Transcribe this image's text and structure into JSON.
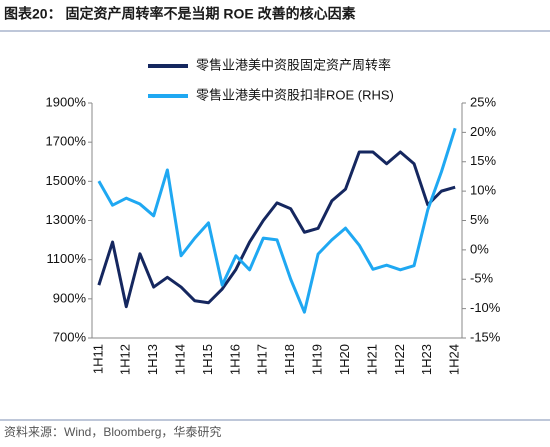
{
  "chart_data": {
    "type": "line",
    "title": "图表20：  固定资产周转率不是当期 ROE 改善的核心因素",
    "source": "资料来源：Wind，Bloomberg，华泰研究",
    "categories": [
      "1H11",
      null,
      "1H12",
      null,
      "1H13",
      null,
      "1H14",
      null,
      "1H15",
      null,
      "1H16",
      null,
      "1H17",
      null,
      "1H18",
      null,
      "1H19",
      null,
      "1H20",
      null,
      "1H21",
      null,
      "1H22",
      null,
      "1H23",
      null,
      "1H24"
    ],
    "series": [
      {
        "name": "零售业港美中资股固定资产周转率",
        "color": "#15275f",
        "values": [
          970,
          1190,
          860,
          1130,
          960,
          1010,
          960,
          890,
          880,
          950,
          1050,
          1190,
          1300,
          1390,
          1360,
          1240,
          1260,
          1400,
          1460,
          1650,
          1650,
          1590,
          1650,
          1590,
          1380,
          1450,
          1470
        ]
      },
      {
        "name": "零售业港美中资股扣非ROE (RHS)",
        "color": "#1fa8f2",
        "axis": "y2",
        "values": [
          11.7,
          7.6,
          8.8,
          7.8,
          5.8,
          13.6,
          -1.0,
          2.0,
          4.6,
          -6.0,
          -1.0,
          -3.4,
          2.0,
          1.7,
          -5.0,
          -10.6,
          -0.7,
          1.7,
          3.7,
          0.8,
          -3.3,
          -2.6,
          -3.4,
          -2.7,
          6.8,
          13.3,
          20.7
        ]
      }
    ],
    "ylim": [
      700,
      1900
    ],
    "yticks": [
      {
        "value": 700,
        "label": "700%"
      },
      {
        "value": 900,
        "label": "900%"
      },
      {
        "value": 1100,
        "label": "1100%"
      },
      {
        "value": 1300,
        "label": "1300%"
      },
      {
        "value": 1500,
        "label": "1500%"
      },
      {
        "value": 1700,
        "label": "1700%"
      },
      {
        "value": 1900,
        "label": "1900%"
      }
    ],
    "y2lim": [
      -15,
      25
    ],
    "y2ticks": [
      {
        "value": -15,
        "label": "-15%"
      },
      {
        "value": -10,
        "label": "-10%"
      },
      {
        "value": -5,
        "label": "-5%"
      },
      {
        "value": 0,
        "label": "0%"
      },
      {
        "value": 5,
        "label": "5%"
      },
      {
        "value": 10,
        "label": "10%"
      },
      {
        "value": 15,
        "label": "15%"
      },
      {
        "value": 20,
        "label": "20%"
      },
      {
        "value": 25,
        "label": "25%"
      }
    ]
  }
}
